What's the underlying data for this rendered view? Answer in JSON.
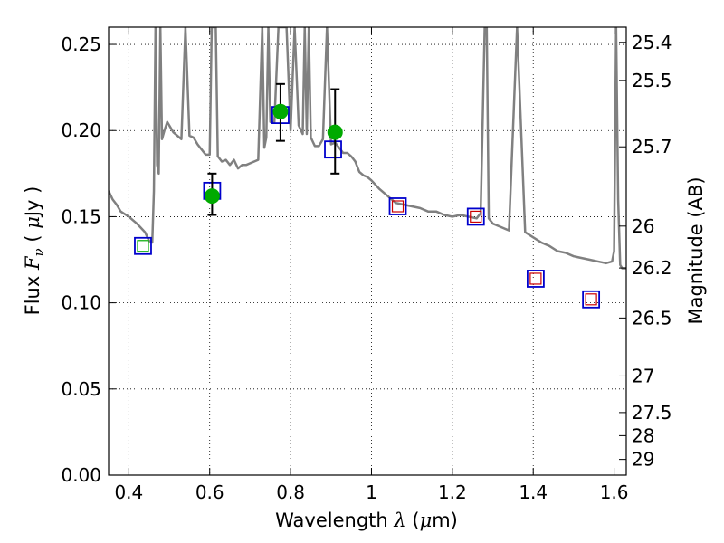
{
  "chart_data": {
    "type": "scatter",
    "title": "",
    "xlabel": "Wavelength  λ (μm)",
    "ylabel": "Flux  Fν  ( μJy )",
    "y2label": "Magnitude (AB)",
    "xlim": [
      0.35,
      1.63
    ],
    "ylim": [
      0.0,
      0.26
    ],
    "grid": true,
    "x_ticks": [
      0.4,
      0.6,
      0.8,
      1.0,
      1.2,
      1.4,
      1.6
    ],
    "x_tick_labels": [
      "0.4",
      "0.6",
      "0.8",
      "1",
      "1.2",
      "1.4",
      "1.6"
    ],
    "y_ticks": [
      0.0,
      0.05,
      0.1,
      0.15,
      0.2,
      0.25
    ],
    "y_tick_labels": [
      "0.00",
      "0.05",
      "0.10",
      "0.15",
      "0.20",
      "0.25"
    ],
    "magnitude_ticks": [
      "25.4",
      "25.5",
      "25.7",
      "26",
      "26.2",
      "26.5",
      "27",
      "27.5",
      "28",
      "29"
    ],
    "colors": {
      "model": "#808080",
      "observed": "#00aa00",
      "model_box": "#0000cc",
      "hst_box": "#cc0000",
      "blue_box": "#00aa00"
    },
    "series": [
      {
        "kind": "line",
        "x": [
          0.35,
          0.36,
          0.37,
          0.38,
          0.4,
          0.42,
          0.44,
          0.45,
          0.458,
          0.462,
          0.466,
          0.47,
          0.474,
          0.478,
          0.482,
          0.488,
          0.495,
          0.5,
          0.51,
          0.52,
          0.53,
          0.54,
          0.55,
          0.56,
          0.57,
          0.58,
          0.59,
          0.6,
          0.605,
          0.61,
          0.615,
          0.62,
          0.63,
          0.64,
          0.65,
          0.66,
          0.67,
          0.68,
          0.69,
          0.7,
          0.71,
          0.72,
          0.73,
          0.735,
          0.74,
          0.745,
          0.75,
          0.76,
          0.77,
          0.78,
          0.79,
          0.8,
          0.81,
          0.82,
          0.83,
          0.835,
          0.84,
          0.845,
          0.85,
          0.86,
          0.87,
          0.88,
          0.89,
          0.9,
          0.91,
          0.92,
          0.93,
          0.94,
          0.95,
          0.96,
          0.97,
          0.98,
          0.99,
          1.0,
          1.02,
          1.04,
          1.06,
          1.08,
          1.1,
          1.12,
          1.14,
          1.16,
          1.18,
          1.2,
          1.22,
          1.24,
          1.26,
          1.27,
          1.28,
          1.285,
          1.29,
          1.3,
          1.32,
          1.34,
          1.36,
          1.38,
          1.4,
          1.42,
          1.44,
          1.46,
          1.48,
          1.5,
          1.52,
          1.54,
          1.56,
          1.58,
          1.595,
          1.6,
          1.605,
          1.61,
          1.615,
          1.62,
          1.63
        ],
        "y": [
          0.165,
          0.16,
          0.157,
          0.153,
          0.15,
          0.146,
          0.141,
          0.136,
          0.135,
          0.165,
          0.26,
          0.18,
          0.175,
          0.26,
          0.195,
          0.2,
          0.205,
          0.203,
          0.199,
          0.197,
          0.195,
          0.26,
          0.197,
          0.196,
          0.192,
          0.189,
          0.186,
          0.186,
          0.26,
          0.26,
          0.26,
          0.185,
          0.182,
          0.183,
          0.18,
          0.183,
          0.178,
          0.18,
          0.18,
          0.181,
          0.182,
          0.183,
          0.26,
          0.19,
          0.196,
          0.26,
          0.205,
          0.205,
          0.26,
          0.26,
          0.26,
          0.2,
          0.26,
          0.203,
          0.198,
          0.26,
          0.198,
          0.26,
          0.196,
          0.191,
          0.191,
          0.195,
          0.26,
          0.192,
          0.193,
          0.19,
          0.187,
          0.187,
          0.185,
          0.182,
          0.176,
          0.174,
          0.173,
          0.171,
          0.166,
          0.162,
          0.158,
          0.157,
          0.156,
          0.155,
          0.153,
          0.153,
          0.151,
          0.15,
          0.151,
          0.15,
          0.149,
          0.152,
          0.26,
          0.26,
          0.149,
          0.146,
          0.144,
          0.142,
          0.26,
          0.141,
          0.138,
          0.135,
          0.133,
          0.13,
          0.129,
          0.127,
          0.126,
          0.125,
          0.124,
          0.123,
          0.124,
          0.13,
          0.26,
          0.16,
          0.122,
          0.12,
          0.12
        ]
      },
      {
        "kind": "points",
        "name": "observed",
        "x": [
          0.606,
          0.775,
          0.91
        ],
        "y": [
          0.162,
          0.211,
          0.199
        ],
        "yerr_low": [
          0.151,
          0.194,
          0.175
        ],
        "yerr_high": [
          0.175,
          0.227,
          0.224
        ]
      },
      {
        "kind": "boxes",
        "name": "model",
        "x": [
          0.435,
          0.606,
          0.775,
          0.905,
          1.065,
          1.258,
          1.406,
          1.543
        ],
        "y": [
          0.133,
          0.165,
          0.209,
          0.189,
          0.156,
          0.15,
          0.114,
          0.102
        ]
      },
      {
        "kind": "inner_boxes",
        "name": "hst",
        "x": [
          1.065,
          1.258,
          1.406,
          1.543
        ],
        "y": [
          0.156,
          0.15,
          0.114,
          0.102
        ]
      },
      {
        "kind": "inner_boxes",
        "name": "blue",
        "x": [
          0.435
        ],
        "y": [
          0.133
        ]
      }
    ]
  }
}
